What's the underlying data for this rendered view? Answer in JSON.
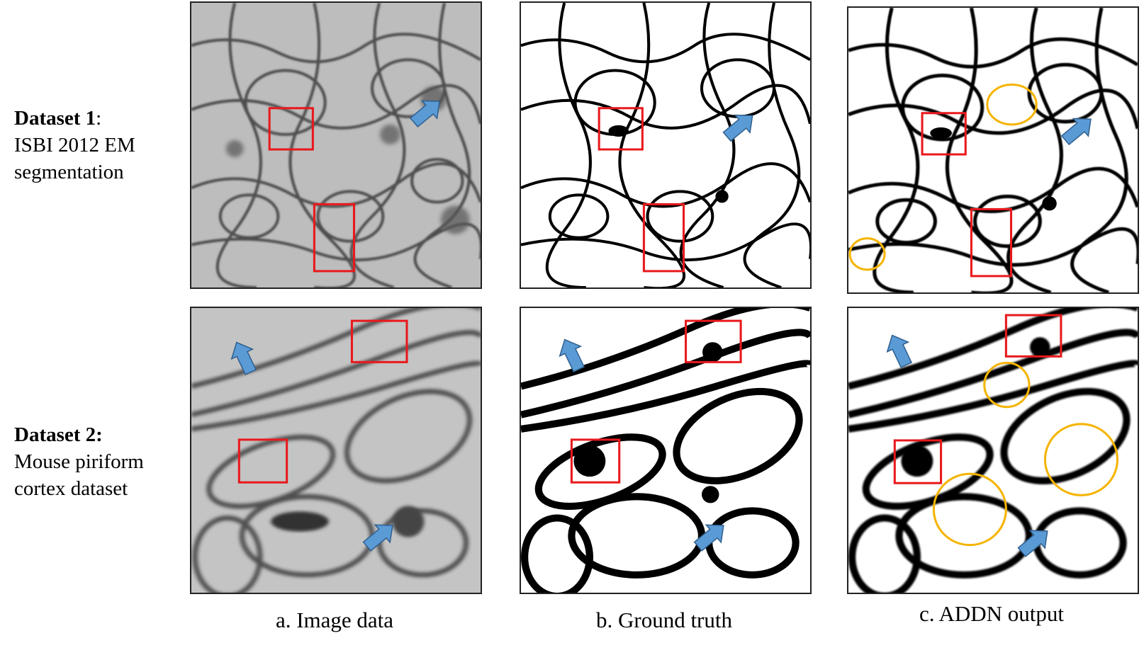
{
  "rows": [
    {
      "title_bold": "Dataset 1",
      "title_rest": ":",
      "lines": [
        "ISBI 2012 EM",
        "segmentation"
      ]
    },
    {
      "title_bold": "Dataset 2:",
      "title_rest": "",
      "lines": [
        "Mouse piriform",
        "cortex dataset"
      ]
    }
  ],
  "captions": [
    "a. Image data",
    "b. Ground truth",
    "c. ADDN output"
  ],
  "colors": {
    "box": "#e8191c",
    "arrow": "#5b9bd5",
    "circle": "#f5b400",
    "membrane": "#111111",
    "em_background": "#b9b9b9"
  },
  "panels": [
    {
      "name": "dataset1-image",
      "style": "em"
    },
    {
      "name": "dataset1-ground-truth",
      "style": "mask"
    },
    {
      "name": "dataset1-addn-output",
      "style": "output"
    },
    {
      "name": "dataset2-image",
      "style": "em"
    },
    {
      "name": "dataset2-ground-truth",
      "style": "mask"
    },
    {
      "name": "dataset2-addn-output",
      "style": "output"
    }
  ]
}
